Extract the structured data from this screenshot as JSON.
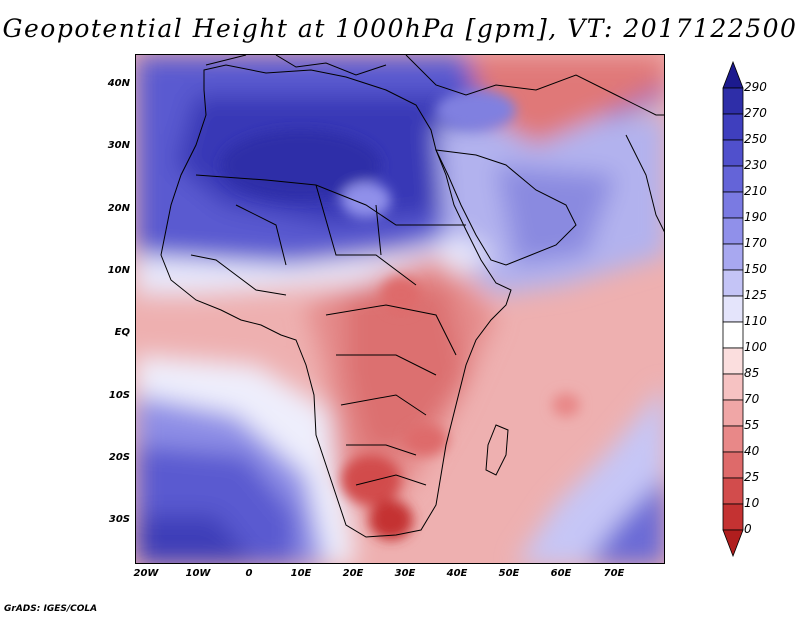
{
  "title": "Geopotential Height at 1000hPa [gpm], VT: 2017122500",
  "credit": "GrADS: IGES/COLA",
  "lat_labels": [
    "40N",
    "30N",
    "20N",
    "10N",
    "EQ",
    "10S",
    "20S",
    "30S"
  ],
  "lon_labels": [
    "20W",
    "10W",
    "0",
    "10E",
    "20E",
    "30E",
    "40E",
    "50E",
    "60E",
    "70E"
  ],
  "colorbar": {
    "levels": [
      "290",
      "270",
      "250",
      "230",
      "210",
      "190",
      "170",
      "150",
      "125",
      "110",
      "100",
      "85",
      "70",
      "55",
      "40",
      "25",
      "10",
      "0"
    ],
    "colors": [
      "#1c1a8e",
      "#2e2ea8",
      "#3f3fbe",
      "#5050cc",
      "#6464d8",
      "#7a7ae2",
      "#9090ea",
      "#a8a8f0",
      "#c4c4f6",
      "#e4e4fb",
      "#ffffff",
      "#fbdede",
      "#f6c2c2",
      "#f0a6a6",
      "#e88888",
      "#de6a6a",
      "#d24c4c",
      "#c43232",
      "#b01e1e"
    ]
  },
  "map": {
    "projection": "lat-lon",
    "lon_range": [
      -23,
      80
    ],
    "lat_range": [
      -36,
      45
    ],
    "variable": "geopotential height 1000hPa"
  }
}
